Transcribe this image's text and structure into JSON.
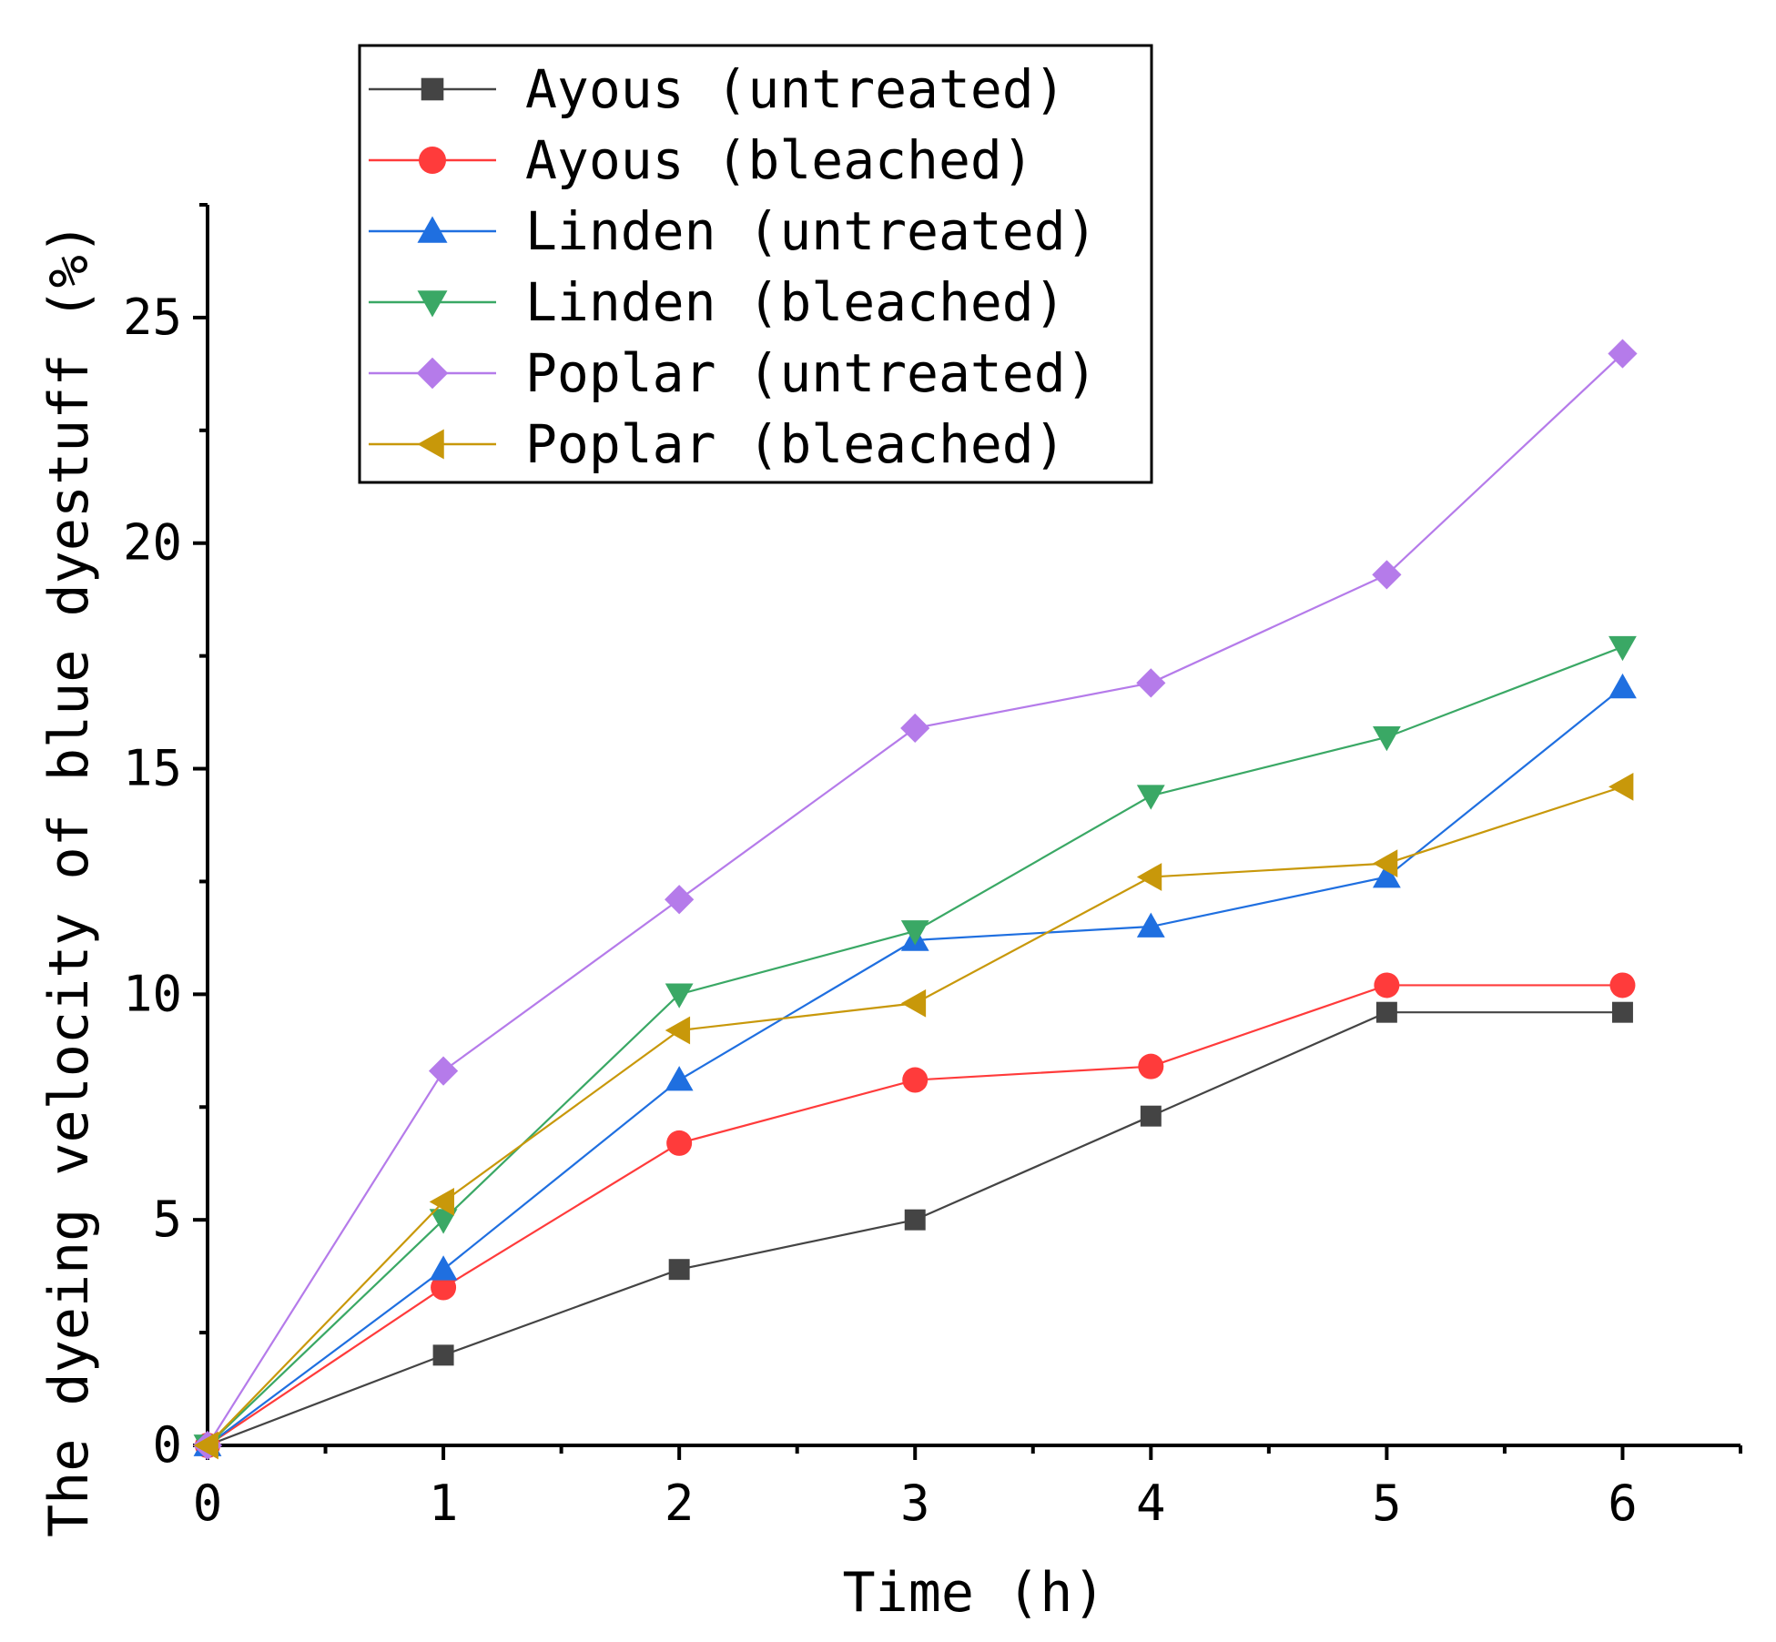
{
  "chart_data": {
    "type": "line",
    "title": "",
    "xlabel": "Time (h)",
    "ylabel": "The dyeing velocity of blue dyestuff (%)",
    "xlim": [
      0,
      6.5
    ],
    "ylim": [
      0,
      27.5
    ],
    "xticks": [
      0,
      1,
      2,
      3,
      4,
      5,
      6
    ],
    "xtick_labels": [
      "0",
      "1",
      "2",
      "3",
      "4",
      "5",
      "6"
    ],
    "yticks": [
      0,
      5,
      10,
      15,
      20,
      25
    ],
    "ytick_labels": [
      "0",
      "5",
      "10",
      "15",
      "20",
      "25"
    ],
    "grid": false,
    "legend_position": "top-left",
    "x": [
      0,
      1,
      2,
      3,
      4,
      5,
      6
    ],
    "series": [
      {
        "name": "Ayous (untreated)",
        "color": "#444444",
        "marker": "square",
        "values": [
          0,
          2.0,
          3.9,
          5.0,
          7.3,
          9.6,
          9.6
        ]
      },
      {
        "name": "Ayous (bleached)",
        "color": "#ff3b3b",
        "marker": "circle",
        "values": [
          0,
          3.5,
          6.7,
          8.1,
          8.4,
          10.2,
          10.2
        ]
      },
      {
        "name": "Linden (untreated)",
        "color": "#1f6fe0",
        "marker": "triangle-up",
        "values": [
          0,
          3.9,
          8.1,
          11.2,
          11.5,
          12.6,
          16.8
        ]
      },
      {
        "name": "Linden (bleached)",
        "color": "#3aa865",
        "marker": "triangle-down",
        "values": [
          0,
          5.0,
          10.0,
          11.4,
          14.4,
          15.7,
          17.7
        ]
      },
      {
        "name": "Poplar (untreated)",
        "color": "#b57bea",
        "marker": "diamond",
        "values": [
          0,
          8.3,
          12.1,
          15.9,
          16.9,
          19.3,
          24.2
        ]
      },
      {
        "name": "Poplar (bleached)",
        "color": "#c8980a",
        "marker": "triangle-left",
        "values": [
          0,
          5.4,
          9.2,
          9.8,
          12.6,
          12.9,
          14.6
        ]
      }
    ]
  }
}
